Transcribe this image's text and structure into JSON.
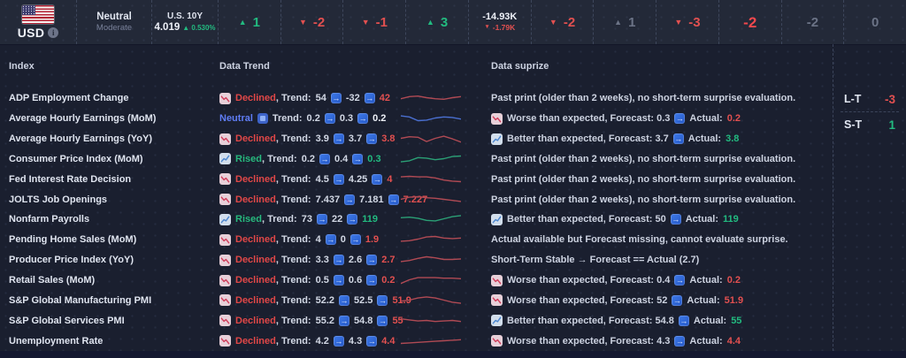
{
  "colors": {
    "red": "#e25050",
    "red_bright": "#f2484d",
    "green": "#22bb80",
    "gray": "#6b7386",
    "white": "#eef1f8",
    "spark_red": "#b04a54",
    "spark_green": "#2ba076",
    "spark_blue": "#4a6fd0"
  },
  "topbar": {
    "currency": {
      "code": "USD"
    },
    "sentiment": {
      "label": "Neutral",
      "sub": "Moderate"
    },
    "bond": {
      "label": "U.S. 10Y",
      "value": "4.019",
      "arrow": "▲",
      "change": "0.530%"
    },
    "scores": [
      {
        "arrow": "up",
        "arrow_color": "green",
        "value": "1",
        "value_color": "green"
      },
      {
        "arrow": "down",
        "arrow_color": "red",
        "value": "-2",
        "value_color": "red"
      },
      {
        "arrow": "down",
        "arrow_color": "red",
        "value": "-1",
        "value_color": "red"
      },
      {
        "arrow": "up",
        "arrow_color": "green",
        "value": "3",
        "value_color": "green"
      },
      {
        "arrow": "none",
        "value": "-14.93K",
        "value_color": "white",
        "sub": "-1.79K"
      },
      {
        "arrow": "down",
        "arrow_color": "red",
        "value": "-2",
        "value_color": "red"
      },
      {
        "arrow": "up",
        "arrow_color": "gray",
        "value": "1",
        "value_color": "gray"
      },
      {
        "arrow": "down",
        "arrow_color": "red",
        "value": "-3",
        "value_color": "red"
      },
      {
        "arrow": "none",
        "value": "-2",
        "value_color": "red_bright",
        "emphasis": true
      },
      {
        "arrow": "none",
        "value": "-2",
        "value_color": "gray"
      },
      {
        "arrow": "none",
        "value": "0",
        "value_color": "gray"
      }
    ]
  },
  "table": {
    "headers": {
      "index": "Index",
      "trend": "Data Trend",
      "surprise": "Data suprize"
    },
    "rows": [
      {
        "index": "ADP Employment Change",
        "trend": {
          "status": "Declined",
          "values": [
            "54",
            "-32",
            "42"
          ],
          "last_color": "red"
        },
        "spark": {
          "color": "spark_red",
          "points": [
            6,
            4,
            3.5,
            5,
            6,
            6.5,
            5,
            4
          ]
        },
        "surprise": {
          "type": "plain",
          "text": "Past print (older than 2 weeks), no short-term surprise evaluation."
        }
      },
      {
        "index": "Average Hourly Earnings (MoM)",
        "trend": {
          "status": "Neutral",
          "values": [
            "0.2",
            "0.3",
            "0.2"
          ],
          "last_color": "white"
        },
        "spark": {
          "color": "spark_blue",
          "points": [
            3,
            4,
            7.5,
            7,
            5,
            4,
            4.5,
            6
          ]
        },
        "surprise": {
          "type": "worse",
          "status": "Worse than expected",
          "forecast": "0.3",
          "actual": "0.2",
          "actual_color": "red"
        }
      },
      {
        "index": "Average Hourly Earnings (YoY)",
        "trend": {
          "status": "Declined",
          "values": [
            "3.9",
            "3.7",
            "3.8"
          ],
          "last_color": "red"
        },
        "spark": {
          "color": "spark_red",
          "points": [
            5,
            3.5,
            4,
            8,
            5,
            3,
            5.5,
            8.5
          ]
        },
        "surprise": {
          "type": "better",
          "status": "Better than expected",
          "forecast": "3.7",
          "actual": "3.8",
          "actual_color": "green"
        }
      },
      {
        "index": "Consumer Price Index (MoM)",
        "trend": {
          "status": "Rised",
          "values": [
            "0.2",
            "0.4",
            "0.3"
          ],
          "last_color": "green"
        },
        "spark": {
          "color": "spark_green",
          "points": [
            8,
            7,
            4,
            4.5,
            6,
            5,
            3,
            2.5
          ]
        },
        "surprise": {
          "type": "plain",
          "text": "Past print (older than 2 weeks), no short-term surprise evaluation."
        }
      },
      {
        "index": "Fed Interest Rate Decision",
        "trend": {
          "status": "Declined",
          "values": [
            "4.5",
            "4.25",
            "4"
          ],
          "last_color": "red"
        },
        "spark": {
          "color": "spark_red",
          "points": [
            3,
            2.5,
            3,
            3,
            4,
            6,
            7,
            7.5
          ]
        },
        "surprise": {
          "type": "plain",
          "text": "Past print (older than 2 weeks), no short-term surprise evaluation."
        }
      },
      {
        "index": "JOLTS Job Openings",
        "trend": {
          "status": "Declined",
          "values": [
            "7.437",
            "7.181",
            "7.227"
          ],
          "last_color": "red"
        },
        "spark": {
          "color": "spark_red",
          "points": [
            5,
            3,
            2.5,
            3.5,
            4,
            5,
            6,
            7
          ]
        },
        "surprise": {
          "type": "plain",
          "text": "Past print (older than 2 weeks), no short-term surprise evaluation."
        }
      },
      {
        "index": "Nonfarm Payrolls",
        "trend": {
          "status": "Rised",
          "values": [
            "73",
            "22",
            "119"
          ],
          "last_color": "green"
        },
        "spark": {
          "color": "spark_green",
          "points": [
            4,
            3.5,
            4.5,
            6.5,
            7,
            5,
            3,
            2
          ]
        },
        "surprise": {
          "type": "better",
          "status": "Better than expected",
          "forecast": "50",
          "actual": "119",
          "actual_color": "green"
        }
      },
      {
        "index": "Pending Home Sales (MoM)",
        "trend": {
          "status": "Declined",
          "values": [
            "4",
            "0",
            "1.9"
          ],
          "last_color": "red"
        },
        "spark": {
          "color": "spark_red",
          "points": [
            7,
            6.5,
            5,
            3,
            2.5,
            4,
            4.5,
            4
          ]
        },
        "surprise": {
          "type": "plain",
          "text": "Actual available but Forecast missing, cannot evaluate surprise."
        }
      },
      {
        "index": "Producer Price Index (YoY)",
        "trend": {
          "status": "Declined",
          "values": [
            "3.3",
            "2.6",
            "2.7"
          ],
          "last_color": "red"
        },
        "spark": {
          "color": "spark_red",
          "points": [
            7,
            6,
            4,
            2.5,
            3.5,
            5,
            5,
            4.5
          ]
        },
        "surprise": {
          "type": "plain",
          "text": "Short-Term Stable  →  Forecast == Actual (2.7)"
        }
      },
      {
        "index": "Retail Sales (MoM)",
        "trend": {
          "status": "Declined",
          "values": [
            "0.5",
            "0.6",
            "0.2"
          ],
          "last_color": "red"
        },
        "spark": {
          "color": "spark_red",
          "points": [
            8.5,
            5,
            3,
            3,
            3,
            3.5,
            3.5,
            4
          ]
        },
        "surprise": {
          "type": "worse",
          "status": "Worse than expected",
          "forecast": "0.4",
          "actual": "0.2",
          "actual_color": "red"
        }
      },
      {
        "index": "S&P Global Manufacturing PMI",
        "trend": {
          "status": "Declined",
          "values": [
            "52.2",
            "52.5",
            "51.9"
          ],
          "last_color": "red"
        },
        "spark": {
          "color": "spark_red",
          "points": [
            6,
            5,
            3,
            2,
            3,
            5,
            7,
            8
          ]
        },
        "surprise": {
          "type": "worse",
          "status": "Worse than expected",
          "forecast": "52",
          "actual": "51.9",
          "actual_color": "red"
        }
      },
      {
        "index": "S&P Global Services PMI",
        "trend": {
          "status": "Declined",
          "values": [
            "55.2",
            "54.8",
            "55"
          ],
          "last_color": "red"
        },
        "spark": {
          "color": "spark_red",
          "points": [
            3.5,
            4.5,
            5.5,
            5,
            6,
            5.5,
            5,
            6
          ]
        },
        "surprise": {
          "type": "better",
          "status": "Better than expected",
          "forecast": "54.8",
          "actual": "55",
          "actual_color": "green"
        }
      },
      {
        "index": "Unemployment Rate",
        "trend": {
          "status": "Declined",
          "values": [
            "4.2",
            "4.3",
            "4.4"
          ],
          "last_color": "red"
        },
        "spark": {
          "color": "spark_red",
          "points": [
            7.5,
            7,
            6.5,
            6,
            5.5,
            5,
            4.5,
            4
          ]
        },
        "surprise": {
          "type": "worse",
          "status": "Worse than expected",
          "forecast": "4.3",
          "actual": "4.4",
          "actual_color": "red"
        }
      }
    ],
    "trend_label": "Trend:",
    "forecast_label": "Forecast:",
    "actual_label": "Actual:"
  },
  "side_panel": {
    "lt_label": "L-T",
    "lt_value": "-3",
    "st_label": "S-T",
    "st_value": "1"
  }
}
